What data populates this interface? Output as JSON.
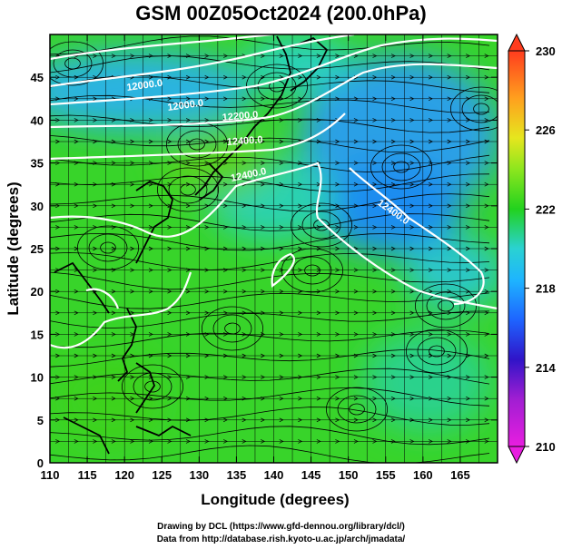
{
  "title": "GSM 00Z05Oct2024 (200.0hPa)",
  "x_axis": {
    "label": "Longitude (degrees)",
    "range": [
      110,
      170
    ],
    "ticks": [
      "110",
      "115",
      "120",
      "125",
      "130",
      "135",
      "140",
      "145",
      "150",
      "155",
      "160",
      "165"
    ]
  },
  "y_axis": {
    "label": "Latitude  (degrees)",
    "range": [
      0,
      50
    ],
    "ticks": [
      "0",
      "5",
      "10",
      "15",
      "20",
      "25",
      "30",
      "35",
      "40",
      "45"
    ]
  },
  "colorbar": {
    "ticks": [
      "210",
      "214",
      "218",
      "222",
      "226",
      "230"
    ],
    "range": [
      210,
      230
    ],
    "colors": [
      "#e81ee0",
      "#3014c8",
      "#1e96ff",
      "#2ad2d2",
      "#22d21e",
      "#b4e61e",
      "#e6c81e",
      "#ff8c1e",
      "#ff3c1e"
    ]
  },
  "contours": [
    {
      "label": "12000.0"
    },
    {
      "label": "12000.0"
    },
    {
      "label": "12200.0"
    },
    {
      "label": "12400.0"
    },
    {
      "label": "12400.0"
    },
    {
      "label": "12400.0"
    }
  ],
  "credits": {
    "line1": "Drawing by DCL (https://www.gfd-dennou.org/library/dcl/)",
    "line2": "Data from http://database.rish.kyoto-u.ac.jp/arch/jmadata/"
  }
}
